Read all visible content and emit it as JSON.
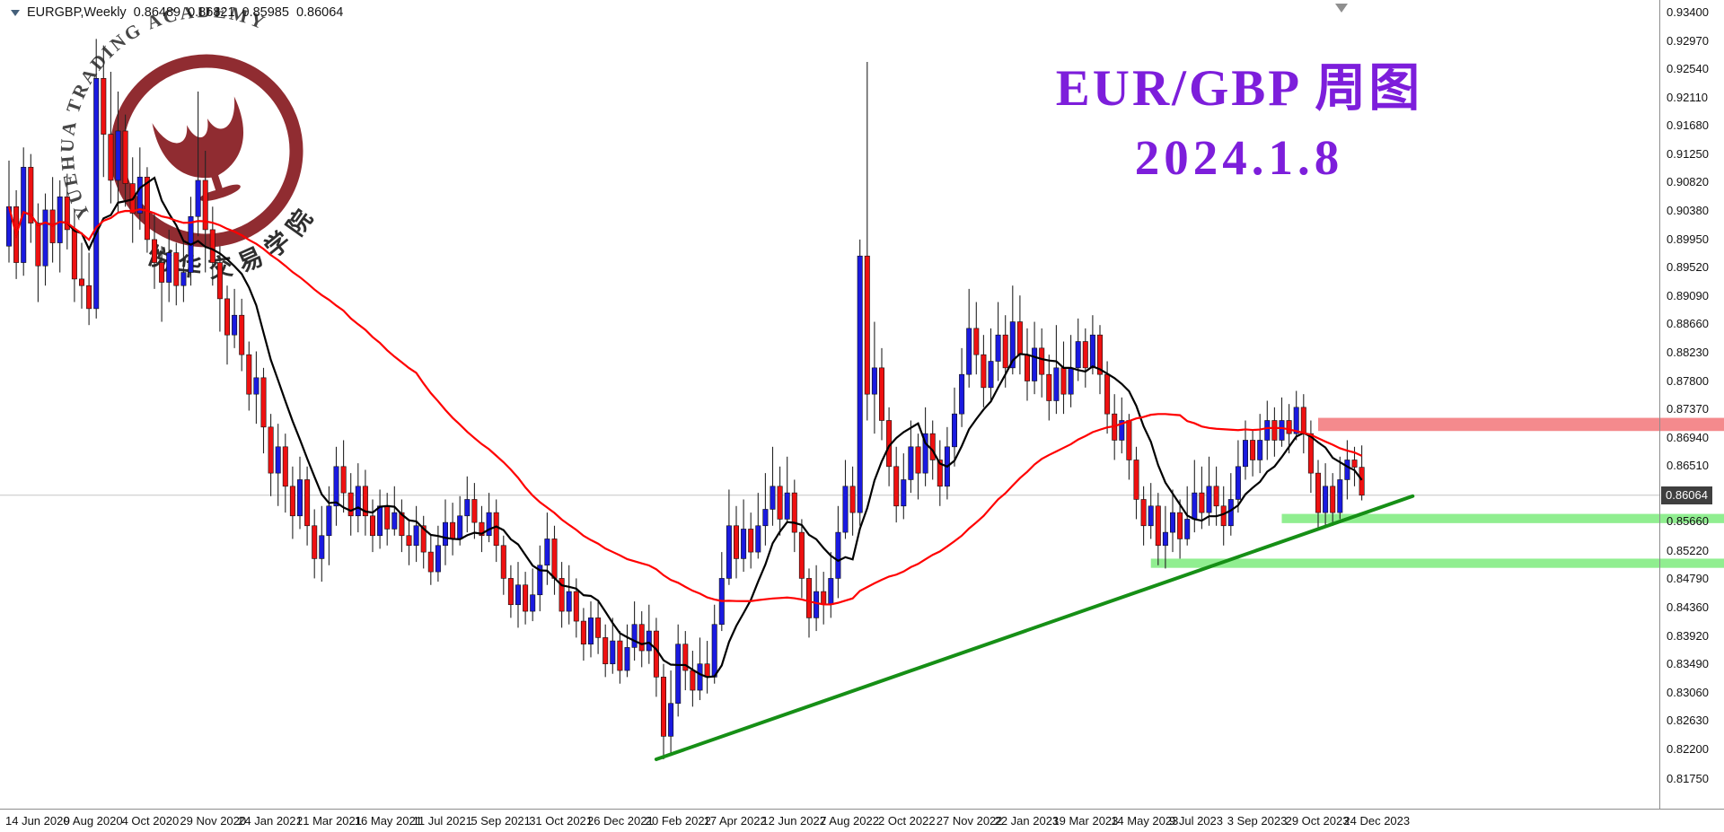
{
  "header": {
    "symbol_label": "EURGBP,Weekly",
    "open": "0.86489",
    "high": "0.86821",
    "low": "0.85985",
    "close": "0.86064"
  },
  "overlay": {
    "line1": "EUR/GBP 周图",
    "line2": "2024.1.8",
    "color": "#7D1EDB"
  },
  "watermark": {
    "arc_text": "YUEHUA TRADING ACADEMY",
    "cn_text": "悦华交易学院",
    "color": "#8B2126"
  },
  "price_tag": {
    "value": "0.86064"
  },
  "axes": {
    "price_labels": [
      "0.93400",
      "0.92970",
      "0.92540",
      "0.92110",
      "0.91680",
      "0.91250",
      "0.90820",
      "0.90380",
      "0.89950",
      "0.89520",
      "0.89090",
      "0.88660",
      "0.88230",
      "0.87800",
      "0.87370",
      "0.86940",
      "0.86510",
      "0.85660",
      "0.85220",
      "0.84790",
      "0.84360",
      "0.83920",
      "0.83490",
      "0.83060",
      "0.82630",
      "0.82200",
      "0.81750"
    ],
    "time_labels": [
      {
        "i": 0,
        "label": "14 Jun 2020"
      },
      {
        "i": 8,
        "label": "9 Aug 2020"
      },
      {
        "i": 16,
        "label": "4 Oct 2020"
      },
      {
        "i": 24,
        "label": "29 Nov 2020"
      },
      {
        "i": 32,
        "label": "24 Jan 2021"
      },
      {
        "i": 40,
        "label": "21 Mar 2021"
      },
      {
        "i": 48,
        "label": "16 May 2021"
      },
      {
        "i": 56,
        "label": "11 Jul 2021"
      },
      {
        "i": 64,
        "label": "5 Sep 2021"
      },
      {
        "i": 72,
        "label": "31 Oct 2021"
      },
      {
        "i": 80,
        "label": "26 Dec 2021"
      },
      {
        "i": 88,
        "label": "20 Feb 2022"
      },
      {
        "i": 96,
        "label": "17 Apr 2022"
      },
      {
        "i": 104,
        "label": "12 Jun 2022"
      },
      {
        "i": 112,
        "label": "7 Aug 2022"
      },
      {
        "i": 120,
        "label": "2 Oct 2022"
      },
      {
        "i": 128,
        "label": "27 Nov 2022"
      },
      {
        "i": 136,
        "label": "22 Jan 2023"
      },
      {
        "i": 144,
        "label": "19 Mar 2023"
      },
      {
        "i": 152,
        "label": "14 May 2023"
      },
      {
        "i": 160,
        "label": "9 Jul 2023"
      },
      {
        "i": 168,
        "label": "3 Sep 2023"
      },
      {
        "i": 176,
        "label": "29 Oct 2023"
      },
      {
        "i": 184,
        "label": "24 Dec 2023"
      }
    ]
  },
  "chart_data": {
    "type": "candlestick",
    "symbol": "EURGBP",
    "timeframe": "Weekly",
    "title": "EUR/GBP 周图 2024.1.8",
    "current_price": 0.86064,
    "ohlc_current": {
      "open": 0.86489,
      "high": 0.86821,
      "low": 0.85985,
      "close": 0.86064
    },
    "price_min": 0.8175,
    "price_max": 0.934,
    "up_color": "#1A1AE0",
    "down_color": "#EE1111",
    "wick_color": "#242424",
    "moving_averages": [
      {
        "name": "ma-fast",
        "period": 9,
        "color": "#000000"
      },
      {
        "name": "ma-slow",
        "period": 45,
        "color": "#FF0000"
      }
    ],
    "trendline": {
      "i1": 89,
      "p1": 0.8205,
      "i2": 193,
      "p2": 0.8605,
      "color": "#168F16"
    },
    "zones": [
      {
        "type": "resistance",
        "p_top": 0.8724,
        "p_bottom": 0.8704,
        "start_index": 180,
        "color": "#F48A8D"
      },
      {
        "type": "support",
        "p_top": 0.8578,
        "p_bottom": 0.8564,
        "start_index": 175,
        "color": "#90EE90"
      },
      {
        "type": "support",
        "p_top": 0.851,
        "p_bottom": 0.8496,
        "start_index": 157,
        "color": "#90EE90"
      }
    ],
    "candles": [
      [
        0.8985,
        0.9115,
        0.896,
        0.9045
      ],
      [
        0.9045,
        0.907,
        0.8935,
        0.896
      ],
      [
        0.896,
        0.9135,
        0.894,
        0.9105
      ],
      [
        0.9105,
        0.9125,
        0.899,
        0.902
      ],
      [
        0.902,
        0.905,
        0.89,
        0.8955
      ],
      [
        0.8955,
        0.9065,
        0.8925,
        0.904
      ],
      [
        0.904,
        0.909,
        0.896,
        0.899
      ],
      [
        0.899,
        0.9085,
        0.8945,
        0.906
      ],
      [
        0.906,
        0.9095,
        0.898,
        0.901
      ],
      [
        0.901,
        0.904,
        0.89,
        0.8935
      ],
      [
        0.8935,
        0.899,
        0.889,
        0.8925
      ],
      [
        0.8925,
        0.8975,
        0.8865,
        0.889
      ],
      [
        0.889,
        0.93,
        0.8875,
        0.924
      ],
      [
        0.924,
        0.929,
        0.909,
        0.9155
      ],
      [
        0.9155,
        0.925,
        0.905,
        0.9085
      ],
      [
        0.9085,
        0.922,
        0.9035,
        0.916
      ],
      [
        0.916,
        0.9185,
        0.9045,
        0.908
      ],
      [
        0.908,
        0.912,
        0.899,
        0.9035
      ],
      [
        0.9035,
        0.9135,
        0.901,
        0.909
      ],
      [
        0.909,
        0.9105,
        0.8975,
        0.8995
      ],
      [
        0.8995,
        0.9035,
        0.892,
        0.896
      ],
      [
        0.896,
        0.8985,
        0.887,
        0.893
      ],
      [
        0.893,
        0.901,
        0.89,
        0.8975
      ],
      [
        0.8975,
        0.899,
        0.8895,
        0.8925
      ],
      [
        0.8925,
        0.8995,
        0.89,
        0.8945
      ],
      [
        0.8945,
        0.906,
        0.8925,
        0.903
      ],
      [
        0.903,
        0.922,
        0.9,
        0.9085
      ],
      [
        0.9085,
        0.913,
        0.8945,
        0.901
      ],
      [
        0.901,
        0.9045,
        0.8925,
        0.896
      ],
      [
        0.896,
        0.8985,
        0.8855,
        0.8905
      ],
      [
        0.8905,
        0.8925,
        0.8805,
        0.885
      ],
      [
        0.885,
        0.892,
        0.883,
        0.888
      ],
      [
        0.888,
        0.8905,
        0.8795,
        0.882
      ],
      [
        0.882,
        0.884,
        0.8735,
        0.876
      ],
      [
        0.876,
        0.8825,
        0.8715,
        0.8785
      ],
      [
        0.8785,
        0.88,
        0.867,
        0.871
      ],
      [
        0.871,
        0.873,
        0.8605,
        0.864
      ],
      [
        0.864,
        0.8715,
        0.859,
        0.868
      ],
      [
        0.868,
        0.87,
        0.858,
        0.862
      ],
      [
        0.862,
        0.865,
        0.854,
        0.8575
      ],
      [
        0.8575,
        0.8665,
        0.8555,
        0.863
      ],
      [
        0.863,
        0.865,
        0.853,
        0.856
      ],
      [
        0.856,
        0.8585,
        0.848,
        0.851
      ],
      [
        0.851,
        0.859,
        0.8475,
        0.8545
      ],
      [
        0.8545,
        0.862,
        0.85,
        0.859
      ],
      [
        0.859,
        0.868,
        0.856,
        0.865
      ],
      [
        0.865,
        0.869,
        0.858,
        0.861
      ],
      [
        0.861,
        0.864,
        0.8545,
        0.8575
      ],
      [
        0.8575,
        0.8655,
        0.855,
        0.862
      ],
      [
        0.862,
        0.8645,
        0.8545,
        0.8575
      ],
      [
        0.8575,
        0.86,
        0.852,
        0.8545
      ],
      [
        0.8545,
        0.8615,
        0.8525,
        0.859
      ],
      [
        0.859,
        0.861,
        0.853,
        0.8555
      ],
      [
        0.8555,
        0.862,
        0.8545,
        0.858
      ],
      [
        0.858,
        0.86,
        0.852,
        0.8545
      ],
      [
        0.8545,
        0.857,
        0.85,
        0.853
      ],
      [
        0.853,
        0.859,
        0.8505,
        0.856
      ],
      [
        0.856,
        0.8575,
        0.8495,
        0.852
      ],
      [
        0.852,
        0.8545,
        0.847,
        0.849
      ],
      [
        0.849,
        0.856,
        0.8475,
        0.853
      ],
      [
        0.853,
        0.86,
        0.85,
        0.8565
      ],
      [
        0.8565,
        0.8595,
        0.8515,
        0.854
      ],
      [
        0.854,
        0.8605,
        0.853,
        0.8575
      ],
      [
        0.8575,
        0.8635,
        0.855,
        0.86
      ],
      [
        0.86,
        0.8625,
        0.854,
        0.8565
      ],
      [
        0.8565,
        0.859,
        0.852,
        0.8545
      ],
      [
        0.8545,
        0.861,
        0.8535,
        0.858
      ],
      [
        0.858,
        0.86,
        0.8505,
        0.853
      ],
      [
        0.853,
        0.8545,
        0.8455,
        0.848
      ],
      [
        0.848,
        0.85,
        0.842,
        0.844
      ],
      [
        0.844,
        0.8505,
        0.8405,
        0.847
      ],
      [
        0.847,
        0.849,
        0.841,
        0.843
      ],
      [
        0.843,
        0.8495,
        0.8415,
        0.8455
      ],
      [
        0.8455,
        0.853,
        0.843,
        0.85
      ],
      [
        0.85,
        0.858,
        0.847,
        0.854
      ],
      [
        0.854,
        0.856,
        0.8455,
        0.848
      ],
      [
        0.848,
        0.8505,
        0.8405,
        0.843
      ],
      [
        0.843,
        0.85,
        0.841,
        0.846
      ],
      [
        0.846,
        0.848,
        0.839,
        0.8415
      ],
      [
        0.8415,
        0.8435,
        0.8355,
        0.838
      ],
      [
        0.838,
        0.8445,
        0.836,
        0.842
      ],
      [
        0.842,
        0.8445,
        0.8365,
        0.839
      ],
      [
        0.839,
        0.841,
        0.833,
        0.835
      ],
      [
        0.835,
        0.842,
        0.8335,
        0.8385
      ],
      [
        0.8385,
        0.84,
        0.832,
        0.834
      ],
      [
        0.834,
        0.841,
        0.833,
        0.8375
      ],
      [
        0.8375,
        0.8445,
        0.8355,
        0.841
      ],
      [
        0.841,
        0.843,
        0.8345,
        0.837
      ],
      [
        0.837,
        0.844,
        0.835,
        0.84
      ],
      [
        0.84,
        0.842,
        0.83,
        0.833
      ],
      [
        0.833,
        0.835,
        0.8205,
        0.824
      ],
      [
        0.824,
        0.834,
        0.821,
        0.829
      ],
      [
        0.829,
        0.841,
        0.827,
        0.838
      ],
      [
        0.838,
        0.84,
        0.831,
        0.834
      ],
      [
        0.834,
        0.837,
        0.8285,
        0.831
      ],
      [
        0.831,
        0.839,
        0.8295,
        0.835
      ],
      [
        0.835,
        0.8385,
        0.8305,
        0.833
      ],
      [
        0.833,
        0.844,
        0.832,
        0.841
      ],
      [
        0.841,
        0.852,
        0.84,
        0.848
      ],
      [
        0.848,
        0.8615,
        0.847,
        0.856
      ],
      [
        0.856,
        0.859,
        0.848,
        0.851
      ],
      [
        0.851,
        0.86,
        0.849,
        0.8555
      ],
      [
        0.8555,
        0.858,
        0.8495,
        0.852
      ],
      [
        0.852,
        0.861,
        0.851,
        0.856
      ],
      [
        0.856,
        0.864,
        0.853,
        0.8585
      ],
      [
        0.8585,
        0.868,
        0.856,
        0.862
      ],
      [
        0.862,
        0.865,
        0.8545,
        0.857
      ],
      [
        0.857,
        0.8665,
        0.8565,
        0.861
      ],
      [
        0.861,
        0.863,
        0.852,
        0.855
      ],
      [
        0.855,
        0.857,
        0.845,
        0.848
      ],
      [
        0.848,
        0.8495,
        0.839,
        0.842
      ],
      [
        0.842,
        0.85,
        0.84,
        0.846
      ],
      [
        0.846,
        0.849,
        0.841,
        0.844
      ],
      [
        0.844,
        0.852,
        0.842,
        0.848
      ],
      [
        0.848,
        0.859,
        0.845,
        0.855
      ],
      [
        0.855,
        0.866,
        0.854,
        0.862
      ],
      [
        0.862,
        0.865,
        0.8545,
        0.858
      ],
      [
        0.858,
        0.8995,
        0.856,
        0.897
      ],
      [
        0.897,
        0.9265,
        0.872,
        0.876
      ],
      [
        0.876,
        0.887,
        0.87,
        0.88
      ],
      [
        0.88,
        0.883,
        0.869,
        0.872
      ],
      [
        0.872,
        0.874,
        0.862,
        0.865
      ],
      [
        0.865,
        0.868,
        0.8565,
        0.859
      ],
      [
        0.859,
        0.867,
        0.857,
        0.863
      ],
      [
        0.863,
        0.872,
        0.861,
        0.868
      ],
      [
        0.868,
        0.87,
        0.86,
        0.864
      ],
      [
        0.864,
        0.874,
        0.862,
        0.87
      ],
      [
        0.87,
        0.872,
        0.863,
        0.866
      ],
      [
        0.866,
        0.869,
        0.859,
        0.862
      ],
      [
        0.862,
        0.871,
        0.86,
        0.868
      ],
      [
        0.868,
        0.877,
        0.865,
        0.873
      ],
      [
        0.873,
        0.883,
        0.871,
        0.879
      ],
      [
        0.879,
        0.892,
        0.877,
        0.886
      ],
      [
        0.886,
        0.89,
        0.879,
        0.882
      ],
      [
        0.882,
        0.885,
        0.874,
        0.877
      ],
      [
        0.877,
        0.886,
        0.875,
        0.881
      ],
      [
        0.881,
        0.89,
        0.878,
        0.885
      ],
      [
        0.885,
        0.888,
        0.877,
        0.88
      ],
      [
        0.88,
        0.8925,
        0.879,
        0.887
      ],
      [
        0.887,
        0.891,
        0.879,
        0.882
      ],
      [
        0.882,
        0.886,
        0.875,
        0.878
      ],
      [
        0.878,
        0.887,
        0.876,
        0.883
      ],
      [
        0.883,
        0.886,
        0.8755,
        0.879
      ],
      [
        0.879,
        0.882,
        0.872,
        0.875
      ],
      [
        0.875,
        0.8865,
        0.873,
        0.88
      ],
      [
        0.88,
        0.884,
        0.873,
        0.876
      ],
      [
        0.876,
        0.885,
        0.874,
        0.88
      ],
      [
        0.88,
        0.8875,
        0.878,
        0.884
      ],
      [
        0.884,
        0.886,
        0.877,
        0.88
      ],
      [
        0.88,
        0.888,
        0.879,
        0.885
      ],
      [
        0.885,
        0.8865,
        0.876,
        0.879
      ],
      [
        0.879,
        0.881,
        0.87,
        0.873
      ],
      [
        0.873,
        0.876,
        0.866,
        0.869
      ],
      [
        0.869,
        0.8755,
        0.867,
        0.872
      ],
      [
        0.872,
        0.873,
        0.863,
        0.866
      ],
      [
        0.866,
        0.868,
        0.857,
        0.86
      ],
      [
        0.86,
        0.862,
        0.853,
        0.856
      ],
      [
        0.856,
        0.8625,
        0.854,
        0.859
      ],
      [
        0.859,
        0.861,
        0.85,
        0.853
      ],
      [
        0.853,
        0.859,
        0.8495,
        0.855
      ],
      [
        0.855,
        0.8615,
        0.852,
        0.858
      ],
      [
        0.858,
        0.86,
        0.851,
        0.854
      ],
      [
        0.854,
        0.862,
        0.853,
        0.857
      ],
      [
        0.857,
        0.866,
        0.855,
        0.861
      ],
      [
        0.861,
        0.865,
        0.8555,
        0.858
      ],
      [
        0.858,
        0.8665,
        0.856,
        0.862
      ],
      [
        0.862,
        0.865,
        0.856,
        0.859
      ],
      [
        0.859,
        0.862,
        0.853,
        0.856
      ],
      [
        0.856,
        0.864,
        0.8545,
        0.86
      ],
      [
        0.86,
        0.869,
        0.858,
        0.865
      ],
      [
        0.865,
        0.872,
        0.863,
        0.869
      ],
      [
        0.869,
        0.8705,
        0.8635,
        0.866
      ],
      [
        0.866,
        0.873,
        0.864,
        0.869
      ],
      [
        0.869,
        0.875,
        0.866,
        0.872
      ],
      [
        0.872,
        0.874,
        0.8665,
        0.869
      ],
      [
        0.869,
        0.8755,
        0.868,
        0.872
      ],
      [
        0.872,
        0.8745,
        0.867,
        0.87
      ],
      [
        0.87,
        0.8765,
        0.869,
        0.874
      ],
      [
        0.874,
        0.876,
        0.867,
        0.87
      ],
      [
        0.87,
        0.872,
        0.861,
        0.864
      ],
      [
        0.864,
        0.866,
        0.8555,
        0.858
      ],
      [
        0.858,
        0.8655,
        0.856,
        0.862
      ],
      [
        0.862,
        0.864,
        0.856,
        0.858
      ],
      [
        0.858,
        0.8665,
        0.857,
        0.863
      ],
      [
        0.863,
        0.869,
        0.86,
        0.866
      ],
      [
        0.866,
        0.868,
        0.862,
        0.8649
      ],
      [
        0.86489,
        0.86821,
        0.85985,
        0.86064
      ]
    ]
  }
}
